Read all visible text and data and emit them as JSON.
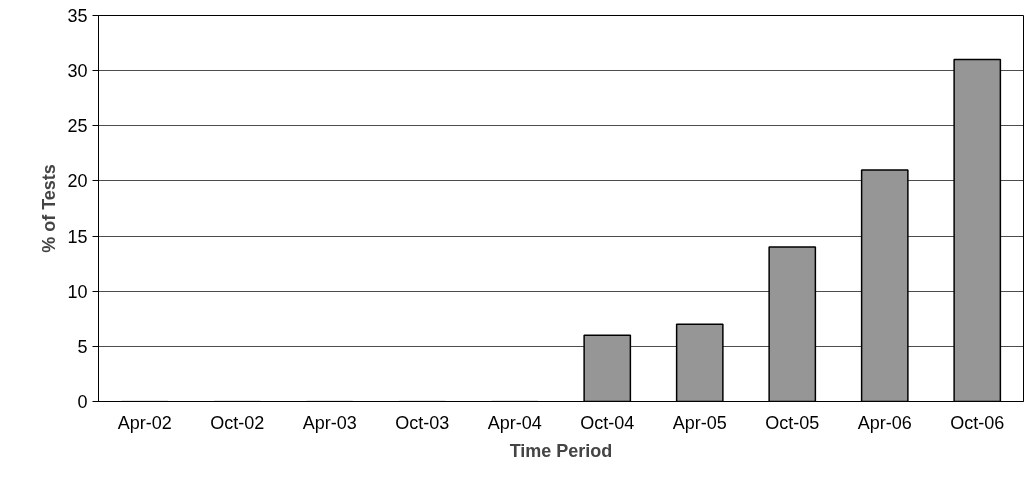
{
  "chart_data": {
    "type": "bar",
    "xlabel": "Time Period",
    "ylabel": "% of Tests",
    "categories": [
      "Apr-02",
      "Oct-02",
      "Apr-03",
      "Oct-03",
      "Apr-04",
      "Oct-04",
      "Apr-05",
      "Oct-05",
      "Apr-06",
      "Oct-06"
    ],
    "values": [
      0,
      0,
      0,
      0,
      0,
      6,
      7,
      14,
      21,
      31
    ],
    "color": "#969696",
    "ylim": [
      0,
      35
    ],
    "yticks": [
      0,
      5,
      10,
      15,
      20,
      25,
      30,
      35
    ],
    "grid": "y"
  }
}
